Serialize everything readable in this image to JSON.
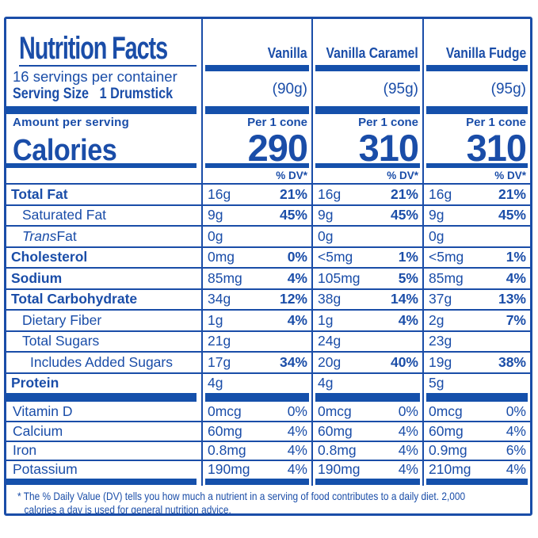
{
  "colors": {
    "label_blue": "#1a4da8",
    "bar_blue": "#1550ab",
    "background": "#ffffff"
  },
  "header": {
    "title": "Nutrition Facts",
    "servings_per_container": "16 servings per container",
    "serving_size_label": "Serving Size",
    "serving_size_value": "1 Drumstick",
    "amount_per_serving": "Amount per serving",
    "calories_label": "Calories",
    "per_unit": "Per 1 cone",
    "percent_dv_header": "% DV*"
  },
  "columns": [
    {
      "name": "Vanilla",
      "weight": "(90g)",
      "calories": "290"
    },
    {
      "name": "Vanilla Caramel",
      "weight": "(95g)",
      "calories": "310"
    },
    {
      "name": "Vanilla Fudge",
      "weight": "(95g)",
      "calories": "310"
    }
  ],
  "nutrients": [
    {
      "label": "Total Fat",
      "bold": true,
      "indent": 0,
      "values": [
        {
          "amount": "16g",
          "dv": "21%"
        },
        {
          "amount": "16g",
          "dv": "21%"
        },
        {
          "amount": "16g",
          "dv": "21%"
        }
      ]
    },
    {
      "label": "Saturated Fat",
      "bold": false,
      "indent": 1,
      "values": [
        {
          "amount": "9g",
          "dv": "45%"
        },
        {
          "amount": "9g",
          "dv": "45%"
        },
        {
          "amount": "9g",
          "dv": "45%"
        }
      ]
    },
    {
      "label": "Trans Fat",
      "bold": false,
      "indent": 1,
      "label_parts": [
        {
          "t": "Trans",
          "i": true
        },
        {
          "t": " Fat",
          "i": false
        }
      ],
      "values": [
        {
          "amount": "0g",
          "dv": ""
        },
        {
          "amount": "0g",
          "dv": ""
        },
        {
          "amount": "0g",
          "dv": ""
        }
      ]
    },
    {
      "label": "Cholesterol",
      "bold": true,
      "indent": 0,
      "values": [
        {
          "amount": "0mg",
          "dv": "0%"
        },
        {
          "amount": "<5mg",
          "dv": "1%"
        },
        {
          "amount": "<5mg",
          "dv": "1%"
        }
      ]
    },
    {
      "label": "Sodium",
      "bold": true,
      "indent": 0,
      "values": [
        {
          "amount": "85mg",
          "dv": "4%"
        },
        {
          "amount": "105mg",
          "dv": "5%"
        },
        {
          "amount": "85mg",
          "dv": "4%"
        }
      ]
    },
    {
      "label": "Total Carbohydrate",
      "bold": true,
      "indent": 0,
      "values": [
        {
          "amount": "34g",
          "dv": "12%"
        },
        {
          "amount": "38g",
          "dv": "14%"
        },
        {
          "amount": "37g",
          "dv": "13%"
        }
      ]
    },
    {
      "label": "Dietary Fiber",
      "bold": false,
      "indent": 1,
      "values": [
        {
          "amount": "1g",
          "dv": "4%"
        },
        {
          "amount": "1g",
          "dv": "4%"
        },
        {
          "amount": "2g",
          "dv": "7%"
        }
      ]
    },
    {
      "label": "Total Sugars",
      "bold": false,
      "indent": 1,
      "values": [
        {
          "amount": "21g",
          "dv": ""
        },
        {
          "amount": "24g",
          "dv": ""
        },
        {
          "amount": "23g",
          "dv": ""
        }
      ]
    },
    {
      "label": "Includes Added Sugars",
      "bold": false,
      "indent": 2,
      "values": [
        {
          "amount": "17g",
          "dv": "34%"
        },
        {
          "amount": "20g",
          "dv": "40%"
        },
        {
          "amount": "19g",
          "dv": "38%"
        }
      ]
    },
    {
      "label": "Protein",
      "bold": true,
      "indent": 0,
      "values": [
        {
          "amount": "4g",
          "dv": ""
        },
        {
          "amount": "4g",
          "dv": ""
        },
        {
          "amount": "5g",
          "dv": ""
        }
      ]
    }
  ],
  "vitamins": [
    {
      "label": "Vitamin D",
      "values": [
        {
          "amount": "0mcg",
          "dv": "0%"
        },
        {
          "amount": "0mcg",
          "dv": "0%"
        },
        {
          "amount": "0mcg",
          "dv": "0%"
        }
      ]
    },
    {
      "label": "Calcium",
      "values": [
        {
          "amount": "60mg",
          "dv": "4%"
        },
        {
          "amount": "60mg",
          "dv": "4%"
        },
        {
          "amount": "60mg",
          "dv": "4%"
        }
      ]
    },
    {
      "label": "Iron",
      "values": [
        {
          "amount": "0.8mg",
          "dv": "4%"
        },
        {
          "amount": "0.8mg",
          "dv": "4%"
        },
        {
          "amount": "0.9mg",
          "dv": "6%"
        }
      ]
    },
    {
      "label": "Potassium",
      "values": [
        {
          "amount": "190mg",
          "dv": "4%"
        },
        {
          "amount": "190mg",
          "dv": "4%"
        },
        {
          "amount": "210mg",
          "dv": "4%"
        }
      ]
    }
  ],
  "footnote_line1": "* The % Daily Value (DV) tells you how much a nutrient in a serving of food contributes to a daily diet. 2,000",
  "footnote_line2": "calories a day is used for general nutrition advice."
}
